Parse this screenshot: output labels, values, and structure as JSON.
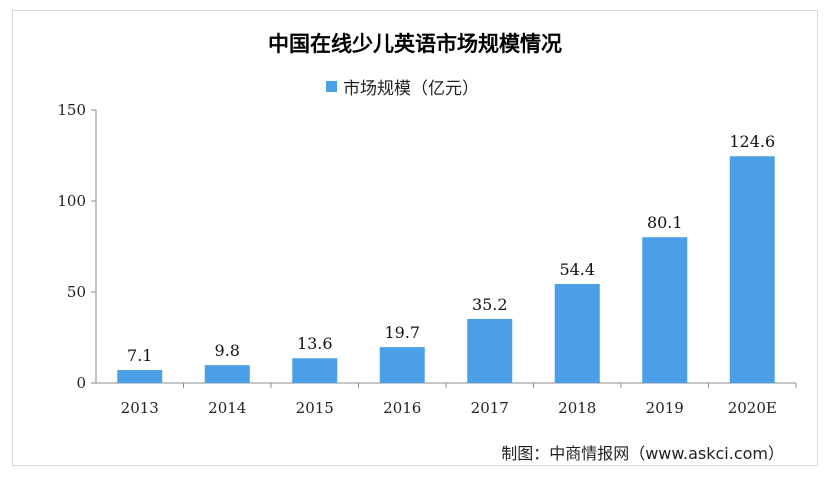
{
  "chart_data": {
    "type": "bar",
    "title": "中国在线少儿英语市场规模情况",
    "categories": [
      "2013",
      "2014",
      "2015",
      "2016",
      "2017",
      "2018",
      "2019",
      "2020E"
    ],
    "series": [
      {
        "name": "市场规模（亿元）",
        "values": [
          7.1,
          9.8,
          13.6,
          19.7,
          35.2,
          54.4,
          80.1,
          124.6
        ]
      }
    ],
    "data_labels": [
      "7.1",
      "9.8",
      "13.6",
      "19.7",
      "35.2",
      "54.4",
      "80.1",
      "124.6"
    ],
    "y_ticks": [
      0,
      50,
      100,
      150
    ],
    "ylim": [
      0,
      150
    ],
    "legend_position": "top-center",
    "grid": false,
    "bar_color": "#4a9fe6"
  },
  "source_text": "制图：中商情报网（www.askci.com）"
}
